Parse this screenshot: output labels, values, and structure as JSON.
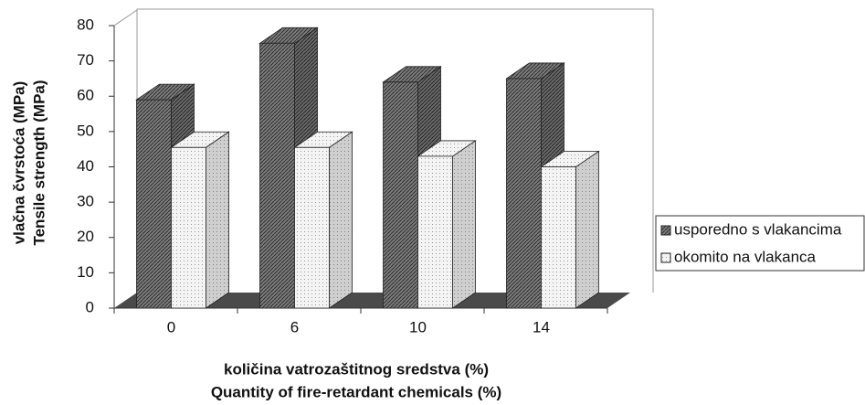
{
  "chart_data": {
    "type": "bar3d",
    "categories": [
      "0",
      "6",
      "10",
      "14"
    ],
    "series": [
      {
        "name": "usporedno s vlakancima",
        "color": "#7a7a7a",
        "values": [
          59,
          75,
          64,
          65
        ]
      },
      {
        "name": "okomito na vlakanca",
        "color": "#f4f4f4",
        "values": [
          45.5,
          45.5,
          43,
          40
        ]
      }
    ],
    "ylim": [
      0,
      80
    ],
    "yticks": [
      0,
      10,
      20,
      30,
      40,
      50,
      60,
      70,
      80
    ],
    "y_label": [
      "vlačna čvrstoća (MPa)",
      "Tensile strength (MPa)"
    ],
    "x_label": [
      "količina vatrozaštitnog sredstva (%)",
      "Quantity of fire-retardant chemicals (%)"
    ],
    "legend": "right"
  }
}
